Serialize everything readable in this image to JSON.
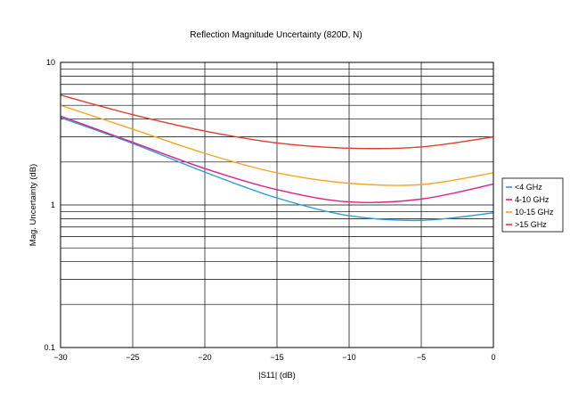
{
  "chart_data": {
    "type": "line",
    "title": "Reflection Magnitude Uncertainty (820D, N)",
    "xlabel": "|S11| (dB)",
    "ylabel": "Mag. Uncertainty (dB)",
    "xlim": [
      -30,
      0
    ],
    "ylim": [
      0.1,
      10
    ],
    "y_scale": "log",
    "grid": true,
    "legend_position": "right",
    "x_ticks": [
      -30,
      -25,
      -20,
      -15,
      -10,
      -5,
      0
    ],
    "x_tick_labels": [
      "−30",
      "−25",
      "−20",
      "−15",
      "−10",
      "−5",
      "0"
    ],
    "y_ticks": [
      0.1,
      1,
      10
    ],
    "y_tick_labels": [
      "0.1",
      "1",
      "10"
    ],
    "x": [
      -30,
      -25,
      -20,
      -15,
      -10,
      -5,
      0
    ],
    "series": [
      {
        "name": "<4 GHz",
        "color": "#2a9fd6",
        "values": [
          4.1,
          2.7,
          1.7,
          1.12,
          0.84,
          0.78,
          0.88
        ]
      },
      {
        "name": "4-10 GHz",
        "color": "#e0218a",
        "values": [
          4.2,
          2.75,
          1.8,
          1.28,
          1.05,
          1.1,
          1.4
        ]
      },
      {
        "name": "10-15 GHz",
        "color": "#f5a623",
        "values": [
          5.0,
          3.4,
          2.3,
          1.68,
          1.42,
          1.39,
          1.68
        ]
      },
      {
        "name": ">15 GHz",
        "color": "#e03c31",
        "values": [
          5.9,
          4.3,
          3.3,
          2.72,
          2.5,
          2.55,
          3.0
        ]
      }
    ]
  }
}
